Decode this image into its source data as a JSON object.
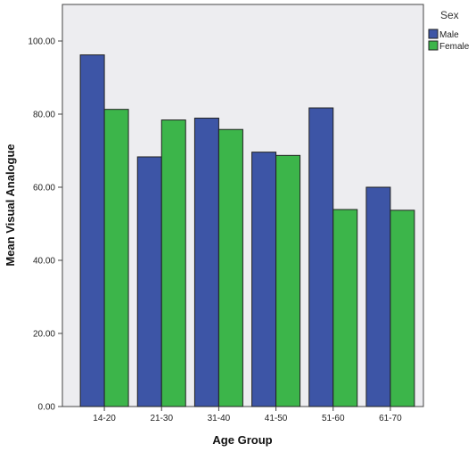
{
  "chart_data": {
    "type": "bar",
    "title": "",
    "xlabel": "Age Group",
    "ylabel": "Mean Visual Analogue",
    "categories": [
      "14-20",
      "21-30",
      "31-40",
      "41-50",
      "51-60",
      "61-70"
    ],
    "series": [
      {
        "name": "Male",
        "color": "#3d55a6",
        "values": [
          96.2,
          68.3,
          78.9,
          69.6,
          81.7,
          60.0
        ]
      },
      {
        "name": "Female",
        "color": "#3cb54a",
        "values": [
          81.3,
          78.4,
          75.8,
          68.7,
          53.9,
          53.7
        ]
      }
    ],
    "ylim": [
      0,
      110
    ],
    "yticks": [
      "0.00",
      "20.00",
      "40.00",
      "60.00",
      "80.00",
      "100.00"
    ],
    "ytick_values": [
      0,
      20,
      40,
      60,
      80,
      100
    ],
    "grid": false,
    "legend": {
      "title": "Sex",
      "placement": "top-right"
    },
    "plot_background": "#ededf0"
  }
}
